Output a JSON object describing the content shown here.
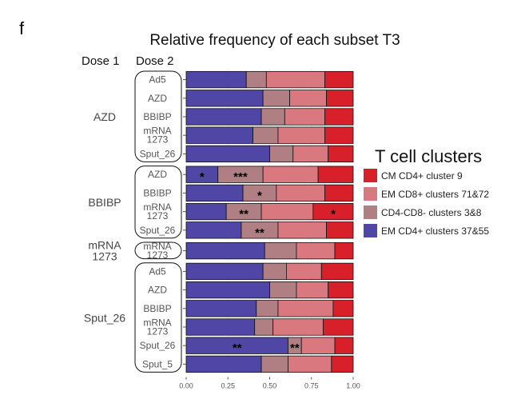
{
  "panel_label": "f",
  "chart_data": {
    "type": "bar",
    "orientation": "horizontal",
    "stacked": true,
    "title": "Relative frequency of each subset T3",
    "row_headers": {
      "dose1": "Dose 1",
      "dose2": "Dose 2"
    },
    "xlim": [
      0,
      1
    ],
    "xticks": [
      "0.00",
      "0.25",
      "0.50",
      "0.75",
      "1.00"
    ],
    "legend": {
      "title": "T cell clusters",
      "position": "right",
      "entries": [
        {
          "key": "cm_cd4_9",
          "label": "CM CD4+ cluster  9",
          "color": "#d7202a"
        },
        {
          "key": "em_cd8_71_72",
          "label": "EM CD8+ clusters 71&72",
          "color": "#d9797f"
        },
        {
          "key": "cd4cd8_3_8",
          "label": "CD4-CD8- clusters 3&8",
          "color": "#b07f84"
        },
        {
          "key": "em_cd4_37_55",
          "label": "EM CD4+ clusters 37&55",
          "color": "#4f46a6"
        }
      ]
    },
    "stack_order": [
      "em_cd4_37_55",
      "cd4cd8_3_8",
      "em_cd8_71_72",
      "cm_cd4_9"
    ],
    "groups": [
      {
        "dose1": "AZD",
        "rows": [
          {
            "dose2": "Ad5",
            "values": [
              0.36,
              0.12,
              0.35,
              0.17
            ]
          },
          {
            "dose2": "AZD",
            "values": [
              0.46,
              0.16,
              0.22,
              0.16
            ]
          },
          {
            "dose2": "BBIBP",
            "values": [
              0.45,
              0.14,
              0.24,
              0.17
            ]
          },
          {
            "dose2": "mRNA\n1273",
            "values": [
              0.4,
              0.15,
              0.28,
              0.17
            ]
          },
          {
            "dose2": "Sput_26",
            "values": [
              0.5,
              0.14,
              0.21,
              0.15
            ]
          }
        ]
      },
      {
        "dose1": "BBIBP",
        "rows": [
          {
            "dose2": "AZD",
            "values": [
              0.19,
              0.27,
              0.33,
              0.21
            ],
            "sig": [
              {
                "segment": 0,
                "text": "*"
              },
              {
                "segment": 1,
                "text": "***"
              }
            ]
          },
          {
            "dose2": "BBIBP",
            "values": [
              0.34,
              0.2,
              0.29,
              0.17
            ],
            "sig": [
              {
                "segment": 1,
                "text": "*"
              }
            ]
          },
          {
            "dose2": "mRNA\n1273",
            "values": [
              0.24,
              0.21,
              0.31,
              0.24
            ],
            "sig": [
              {
                "segment": 1,
                "text": "**"
              },
              {
                "segment": 3,
                "text": "*"
              }
            ]
          },
          {
            "dose2": "Sput_26",
            "values": [
              0.33,
              0.22,
              0.29,
              0.16
            ],
            "sig": [
              {
                "segment": 1,
                "text": "**"
              }
            ]
          }
        ]
      },
      {
        "dose1": "mRNA\n1273",
        "rows": [
          {
            "dose2": "mRNA\n1273",
            "values": [
              0.47,
              0.19,
              0.23,
              0.11
            ]
          }
        ]
      },
      {
        "dose1": "Sput_26",
        "rows": [
          {
            "dose2": "Ad5",
            "values": [
              0.46,
              0.14,
              0.21,
              0.19
            ]
          },
          {
            "dose2": "AZD",
            "values": [
              0.5,
              0.16,
              0.19,
              0.15
            ]
          },
          {
            "dose2": "BBIBP",
            "values": [
              0.42,
              0.13,
              0.33,
              0.12
            ]
          },
          {
            "dose2": "mRNA\n1273",
            "values": [
              0.41,
              0.11,
              0.3,
              0.18
            ]
          },
          {
            "dose2": "Sput_26",
            "values": [
              0.61,
              0.08,
              0.2,
              0.11
            ],
            "sig": [
              {
                "segment": 0,
                "text": "**"
              },
              {
                "segment": 1,
                "text": "**"
              }
            ]
          },
          {
            "dose2": "Sput_5",
            "values": [
              0.45,
              0.16,
              0.26,
              0.13
            ]
          }
        ]
      }
    ]
  }
}
